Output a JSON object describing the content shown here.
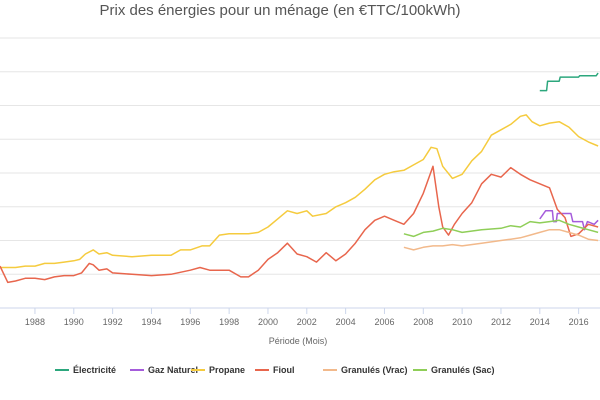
{
  "chart_data": {
    "type": "line",
    "title": "Prix des énergies pour un ménage (en €TTC/100kWh)",
    "xlabel": "Période (Mois)",
    "ylabel": "",
    "x_ticks": [
      "1988",
      "1990",
      "1992",
      "1994",
      "1996",
      "1998",
      "2000",
      "2002",
      "2004",
      "2006",
      "2008",
      "2010",
      "2012",
      "2014",
      "2016"
    ],
    "xlim": [
      1986.2,
      2017.1
    ],
    "ylim": [
      1,
      21
    ],
    "y_ticks_printed": false,
    "grid": true,
    "legend_position": "bottom",
    "series": [
      {
        "name": "Électricité",
        "color": "#2ca77d",
        "points": [
          [
            2014.0,
            17.1
          ],
          [
            2014.35,
            17.1
          ],
          [
            2014.4,
            17.8
          ],
          [
            2015.0,
            17.8
          ],
          [
            2015.05,
            18.1
          ],
          [
            2016.0,
            18.1
          ],
          [
            2016.05,
            18.2
          ],
          [
            2016.9,
            18.2
          ],
          [
            2017.0,
            18.4
          ]
        ]
      },
      {
        "name": "Gaz Naturel",
        "color": "#a55cdb",
        "points": [
          [
            2014.0,
            7.6
          ],
          [
            2014.3,
            8.2
          ],
          [
            2014.65,
            8.2
          ],
          [
            2014.7,
            7.4
          ],
          [
            2014.85,
            7.4
          ],
          [
            2014.9,
            8.0
          ],
          [
            2015.6,
            8.0
          ],
          [
            2015.7,
            7.4
          ],
          [
            2016.2,
            7.4
          ],
          [
            2016.3,
            6.8
          ],
          [
            2016.45,
            7.4
          ],
          [
            2016.8,
            7.2
          ],
          [
            2017.0,
            7.5
          ]
        ]
      },
      {
        "name": "Propane",
        "color": "#f5cb3e",
        "points": [
          [
            1986.2,
            4.0
          ],
          [
            1987.0,
            4.0
          ],
          [
            1987.5,
            4.1
          ],
          [
            1988.0,
            4.1
          ],
          [
            1988.5,
            4.3
          ],
          [
            1989.0,
            4.3
          ],
          [
            1989.5,
            4.4
          ],
          [
            1990.0,
            4.5
          ],
          [
            1990.3,
            4.6
          ],
          [
            1990.6,
            5.0
          ],
          [
            1991.0,
            5.3
          ],
          [
            1991.3,
            5.0
          ],
          [
            1991.7,
            5.1
          ],
          [
            1992.0,
            4.9
          ],
          [
            1993.0,
            4.8
          ],
          [
            1994.0,
            4.9
          ],
          [
            1995.0,
            4.9
          ],
          [
            1995.5,
            5.3
          ],
          [
            1996.0,
            5.3
          ],
          [
            1996.6,
            5.6
          ],
          [
            1997.0,
            5.6
          ],
          [
            1997.5,
            6.4
          ],
          [
            1998.0,
            6.5
          ],
          [
            1999.0,
            6.5
          ],
          [
            1999.5,
            6.6
          ],
          [
            2000.0,
            7.0
          ],
          [
            2000.5,
            7.6
          ],
          [
            2001.0,
            8.2
          ],
          [
            2001.5,
            8.0
          ],
          [
            2002.0,
            8.2
          ],
          [
            2002.3,
            7.8
          ],
          [
            2003.0,
            8.0
          ],
          [
            2003.5,
            8.5
          ],
          [
            2004.0,
            8.8
          ],
          [
            2004.5,
            9.2
          ],
          [
            2005.0,
            9.8
          ],
          [
            2005.5,
            10.5
          ],
          [
            2006.0,
            10.9
          ],
          [
            2006.5,
            11.1
          ],
          [
            2007.0,
            11.2
          ],
          [
            2007.5,
            11.6
          ],
          [
            2008.0,
            12.0
          ],
          [
            2008.4,
            12.9
          ],
          [
            2008.7,
            12.8
          ],
          [
            2009.0,
            11.5
          ],
          [
            2009.5,
            10.6
          ],
          [
            2010.0,
            10.9
          ],
          [
            2010.5,
            11.9
          ],
          [
            2011.0,
            12.6
          ],
          [
            2011.5,
            13.8
          ],
          [
            2012.0,
            14.2
          ],
          [
            2012.5,
            14.6
          ],
          [
            2013.0,
            15.2
          ],
          [
            2013.3,
            15.3
          ],
          [
            2013.6,
            14.8
          ],
          [
            2014.0,
            14.5
          ],
          [
            2014.5,
            14.7
          ],
          [
            2015.0,
            14.8
          ],
          [
            2015.5,
            14.4
          ],
          [
            2016.0,
            13.7
          ],
          [
            2016.5,
            13.3
          ],
          [
            2017.0,
            13.0
          ]
        ]
      },
      {
        "name": "Fioul",
        "color": "#e8664d",
        "points": [
          [
            1986.2,
            4.1
          ],
          [
            1986.6,
            2.9
          ],
          [
            1987.0,
            3.0
          ],
          [
            1987.5,
            3.2
          ],
          [
            1988.0,
            3.2
          ],
          [
            1988.5,
            3.1
          ],
          [
            1989.0,
            3.3
          ],
          [
            1989.5,
            3.4
          ],
          [
            1990.0,
            3.4
          ],
          [
            1990.4,
            3.6
          ],
          [
            1990.8,
            4.3
          ],
          [
            1991.0,
            4.2
          ],
          [
            1991.3,
            3.8
          ],
          [
            1991.7,
            3.9
          ],
          [
            1992.0,
            3.6
          ],
          [
            1993.0,
            3.5
          ],
          [
            1994.0,
            3.4
          ],
          [
            1995.0,
            3.5
          ],
          [
            1996.0,
            3.8
          ],
          [
            1996.5,
            4.0
          ],
          [
            1997.0,
            3.8
          ],
          [
            1998.0,
            3.8
          ],
          [
            1998.6,
            3.3
          ],
          [
            1999.0,
            3.3
          ],
          [
            1999.5,
            3.8
          ],
          [
            2000.0,
            4.6
          ],
          [
            2000.5,
            5.1
          ],
          [
            2001.0,
            5.8
          ],
          [
            2001.5,
            5.0
          ],
          [
            2002.0,
            4.8
          ],
          [
            2002.5,
            4.4
          ],
          [
            2003.0,
            5.1
          ],
          [
            2003.5,
            4.5
          ],
          [
            2004.0,
            5.0
          ],
          [
            2004.5,
            5.8
          ],
          [
            2005.0,
            6.8
          ],
          [
            2005.5,
            7.5
          ],
          [
            2006.0,
            7.8
          ],
          [
            2006.5,
            7.5
          ],
          [
            2007.0,
            7.2
          ],
          [
            2007.5,
            8.0
          ],
          [
            2008.0,
            9.5
          ],
          [
            2008.5,
            11.5
          ],
          [
            2008.8,
            8.5
          ],
          [
            2009.0,
            7.0
          ],
          [
            2009.3,
            6.4
          ],
          [
            2009.6,
            7.2
          ],
          [
            2010.0,
            8.0
          ],
          [
            2010.5,
            8.8
          ],
          [
            2011.0,
            10.2
          ],
          [
            2011.5,
            10.9
          ],
          [
            2012.0,
            10.7
          ],
          [
            2012.5,
            11.4
          ],
          [
            2013.0,
            10.9
          ],
          [
            2013.5,
            10.5
          ],
          [
            2014.0,
            10.2
          ],
          [
            2014.5,
            9.9
          ],
          [
            2014.9,
            8.3
          ],
          [
            2015.3,
            7.7
          ],
          [
            2015.6,
            6.3
          ],
          [
            2016.0,
            6.5
          ],
          [
            2016.5,
            7.2
          ],
          [
            2017.0,
            7.0
          ]
        ]
      },
      {
        "name": "Granulés (Vrac)",
        "color": "#f2b98b",
        "points": [
          [
            2007.0,
            5.5
          ],
          [
            2007.5,
            5.3
          ],
          [
            2008.0,
            5.5
          ],
          [
            2008.5,
            5.6
          ],
          [
            2009.0,
            5.6
          ],
          [
            2009.5,
            5.7
          ],
          [
            2010.0,
            5.6
          ],
          [
            2011.0,
            5.8
          ],
          [
            2012.0,
            6.0
          ],
          [
            2012.5,
            6.1
          ],
          [
            2013.0,
            6.2
          ],
          [
            2013.5,
            6.4
          ],
          [
            2014.0,
            6.6
          ],
          [
            2014.5,
            6.8
          ],
          [
            2015.0,
            6.8
          ],
          [
            2015.5,
            6.6
          ],
          [
            2016.0,
            6.4
          ],
          [
            2016.5,
            6.1
          ],
          [
            2017.0,
            6.0
          ]
        ]
      },
      {
        "name": "Granulés (Sac)",
        "color": "#8fce58",
        "points": [
          [
            2007.0,
            6.5
          ],
          [
            2007.5,
            6.3
          ],
          [
            2008.0,
            6.6
          ],
          [
            2008.5,
            6.7
          ],
          [
            2009.0,
            6.9
          ],
          [
            2009.5,
            6.8
          ],
          [
            2010.0,
            6.6
          ],
          [
            2011.0,
            6.8
          ],
          [
            2012.0,
            6.9
          ],
          [
            2012.5,
            7.1
          ],
          [
            2013.0,
            7.0
          ],
          [
            2013.5,
            7.4
          ],
          [
            2014.0,
            7.3
          ],
          [
            2014.5,
            7.4
          ],
          [
            2015.0,
            7.5
          ],
          [
            2015.5,
            7.2
          ],
          [
            2016.0,
            7.0
          ],
          [
            2016.5,
            6.8
          ],
          [
            2017.0,
            6.6
          ]
        ]
      }
    ]
  }
}
